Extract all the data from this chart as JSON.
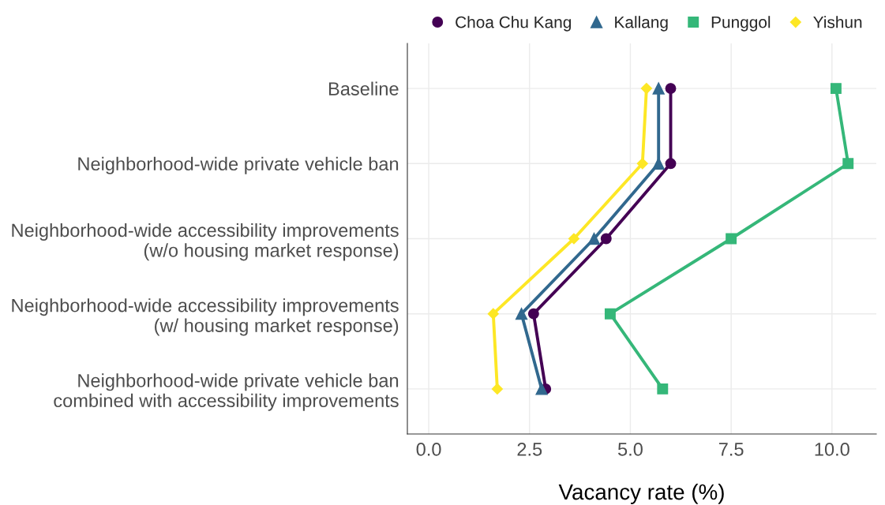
{
  "chart_data": {
    "type": "line",
    "orientation": "horizontal",
    "xlabel": "Vacancy rate (%)",
    "categories": [
      "Baseline",
      "Neighborhood-wide private vehicle ban",
      "Neighborhood-wide accessibility improvements\n(w/o housing market response)",
      "Neighborhood-wide accessibility improvements\n(w/ housing market response)",
      "Neighborhood-wide private vehicle ban\ncombined with accessibility improvements"
    ],
    "series": [
      {
        "name": "Choa Chu Kang",
        "color": "#440154",
        "marker": "circle",
        "values": [
          6.0,
          6.0,
          4.4,
          2.6,
          2.9
        ]
      },
      {
        "name": "Kallang",
        "color": "#31688e",
        "marker": "triangle",
        "values": [
          5.7,
          5.7,
          4.1,
          2.3,
          2.8
        ]
      },
      {
        "name": "Punggol",
        "color": "#35b779",
        "marker": "square",
        "values": [
          10.1,
          10.4,
          7.5,
          4.5,
          5.8
        ]
      },
      {
        "name": "Yishun",
        "color": "#fde725",
        "marker": "diamond",
        "values": [
          5.4,
          5.3,
          3.6,
          1.6,
          1.7
        ]
      }
    ],
    "xlim": [
      -0.53,
      11.1
    ],
    "xticks": [
      {
        "value": 0,
        "label": "0.0"
      },
      2.5,
      {
        "value": 5,
        "label": "5.0"
      },
      7.5,
      {
        "value": 10,
        "label": "10.0"
      }
    ],
    "grid": true,
    "legend": "top"
  }
}
